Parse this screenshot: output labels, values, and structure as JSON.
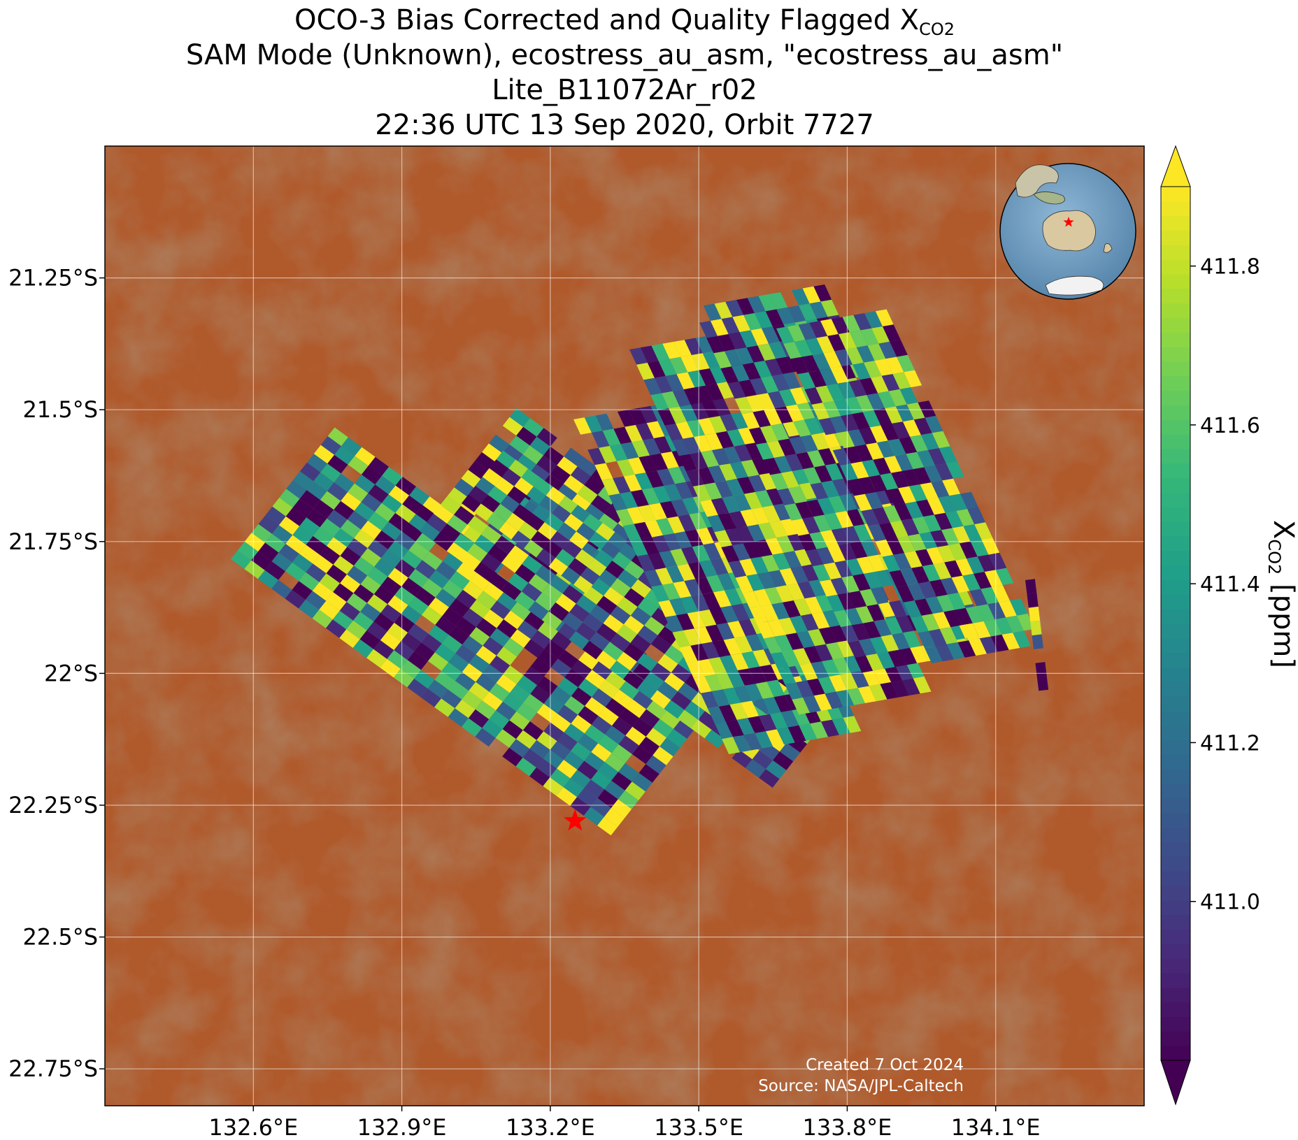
{
  "title": {
    "line1_prefix": "OCO-3 Bias Corrected and Quality Flagged X",
    "line1_sub": "CO2",
    "line2": "SAM Mode (Unknown), ecostress_au_asm, \"ecostress_au_asm\"",
    "line3": "Lite_B11072Ar_r02",
    "line4": "22:36 UTC 13 Sep 2020, Orbit 7727"
  },
  "map": {
    "lon_range": [
      132.3,
      134.4
    ],
    "lat_range": [
      -22.82,
      -21.0
    ],
    "lon_ticks": [
      {
        "v": 132.6,
        "label": "132.6°E"
      },
      {
        "v": 132.9,
        "label": "132.9°E"
      },
      {
        "v": 133.2,
        "label": "133.2°E"
      },
      {
        "v": 133.5,
        "label": "133.5°E"
      },
      {
        "v": 133.8,
        "label": "133.8°E"
      },
      {
        "v": 134.1,
        "label": "134.1°E"
      }
    ],
    "lat_ticks": [
      {
        "v": -21.25,
        "label": "21.25°S"
      },
      {
        "v": -21.5,
        "label": "21.5°S"
      },
      {
        "v": -21.75,
        "label": "21.75°S"
      },
      {
        "v": -22.0,
        "label": "22°S"
      },
      {
        "v": -22.25,
        "label": "22.25°S"
      },
      {
        "v": -22.5,
        "label": "22.5°S"
      },
      {
        "v": -22.75,
        "label": "22.75°S"
      }
    ],
    "gridlines": true,
    "basemap": "satellite imagery, arid desert (orange-red terrain)",
    "target_marker": {
      "lon": 133.25,
      "lat": -22.28,
      "color": "#ff0000",
      "icon": "star"
    },
    "inset_globe": {
      "placement": "top-right",
      "centered_on": "Australia",
      "marker_color": "#ff0000"
    }
  },
  "soundings": {
    "value_range": [
      410.8,
      411.9
    ],
    "colormap": "viridis",
    "note_cells": "random per-footprint values between colorbar limits"
  },
  "colorbar": {
    "ticks": [
      {
        "v": 411.0,
        "label": "411.0"
      },
      {
        "v": 411.2,
        "label": "411.2"
      },
      {
        "v": 411.4,
        "label": "411.4"
      },
      {
        "v": 411.6,
        "label": "411.6"
      },
      {
        "v": 411.8,
        "label": "411.8"
      }
    ],
    "label_prefix": "X",
    "label_sub": "CO2",
    "label_suffix": " [ppm]",
    "extend": "both"
  },
  "credits": {
    "created": "Created 7 Oct 2024",
    "source": "Source: NASA/JPL-Caltech"
  }
}
